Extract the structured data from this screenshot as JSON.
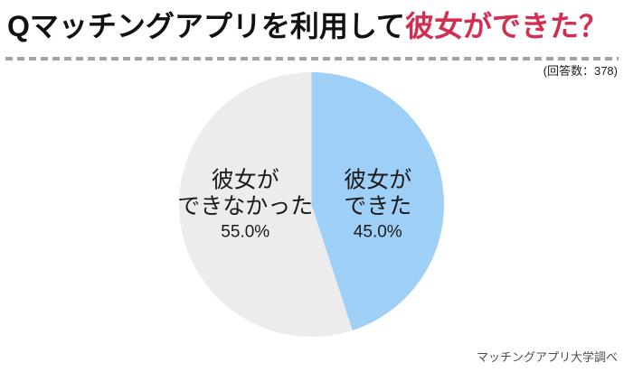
{
  "page": {
    "title_prefix": "Qマッチングアプリを利用して",
    "title_highlight": "彼女ができた？",
    "respondents_note": "(回答数：378)",
    "source_note": "マッチングアプリ大学調べ"
  },
  "colors": {
    "title_highlight": "#d22e52",
    "dash_line": "#a3a3a3",
    "label_text": "#1b1b1b"
  },
  "chart_data": {
    "type": "pie",
    "title": "Qマッチングアプリを利用して彼女ができた？",
    "respondents": 378,
    "categories": [
      "彼女ができた",
      "彼女ができなかった"
    ],
    "values": [
      45.0,
      55.0
    ],
    "unit": "%",
    "colors": [
      "#9dcff7",
      "#ececec"
    ],
    "start_angle": "12-oclock",
    "direction": "clockwise",
    "legend": "none",
    "labels": [
      {
        "lines": [
          "彼女が",
          "できた"
        ],
        "percent": "45.0%",
        "position": "right"
      },
      {
        "lines": [
          "彼女が",
          "できなかった"
        ],
        "percent": "55.0%",
        "position": "left"
      }
    ]
  }
}
